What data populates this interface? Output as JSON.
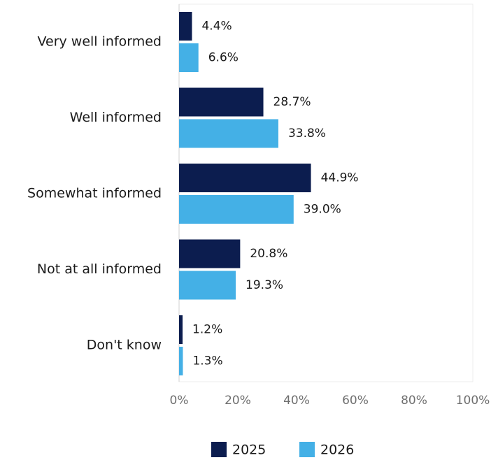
{
  "chart_data": {
    "type": "bar",
    "orientation": "horizontal",
    "categories": [
      "Very well informed",
      "Well informed",
      "Somewhat informed",
      "Not at all informed",
      "Don't know"
    ],
    "series": [
      {
        "name": "2025",
        "color": "#0c1d4f",
        "values": [
          4.4,
          28.7,
          44.9,
          20.8,
          1.2
        ],
        "labels": [
          "4.4%",
          "28.7%",
          "44.9%",
          "20.8%",
          "1.2%"
        ]
      },
      {
        "name": "2026",
        "color": "#44b0e6",
        "values": [
          6.6,
          33.8,
          39.0,
          19.3,
          1.3
        ],
        "labels": [
          "6.6%",
          "33.8%",
          "39.0%",
          "19.3%",
          "1.3%"
        ]
      }
    ],
    "xlim": [
      0,
      100
    ],
    "xticks": [
      "0%",
      "20%",
      "40%",
      "60%",
      "80%",
      "100%"
    ],
    "grid": false,
    "legend_position": "bottom-center",
    "title": "",
    "xlabel": "",
    "ylabel": ""
  }
}
